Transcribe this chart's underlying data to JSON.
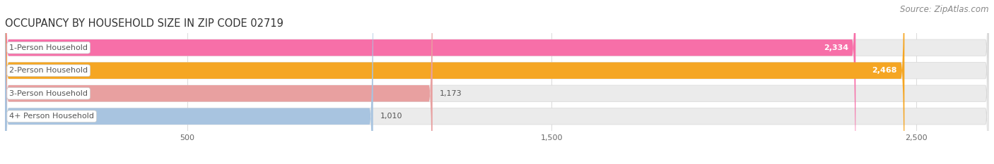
{
  "title": "OCCUPANCY BY HOUSEHOLD SIZE IN ZIP CODE 02719",
  "source": "Source: ZipAtlas.com",
  "categories": [
    "1-Person Household",
    "2-Person Household",
    "3-Person Household",
    "4+ Person Household"
  ],
  "values": [
    2334,
    2468,
    1173,
    1010
  ],
  "bar_colors": [
    "#F76FA8",
    "#F5A623",
    "#E8A0A0",
    "#A8C4E0"
  ],
  "bar_bg_color": "#EBEBEB",
  "xlim_max": 2700,
  "xticks": [
    500,
    1500,
    2500
  ],
  "title_fontsize": 10.5,
  "source_fontsize": 8.5,
  "label_fontsize": 8,
  "value_fontsize": 8,
  "background_color": "#FFFFFF",
  "bar_height": 0.72,
  "label_text_color": "#555555",
  "value_color_inside": "#FFFFFF",
  "value_color_outside": "#555555",
  "grid_color": "#DDDDDD",
  "label_box_color": "#FFFFFF"
}
